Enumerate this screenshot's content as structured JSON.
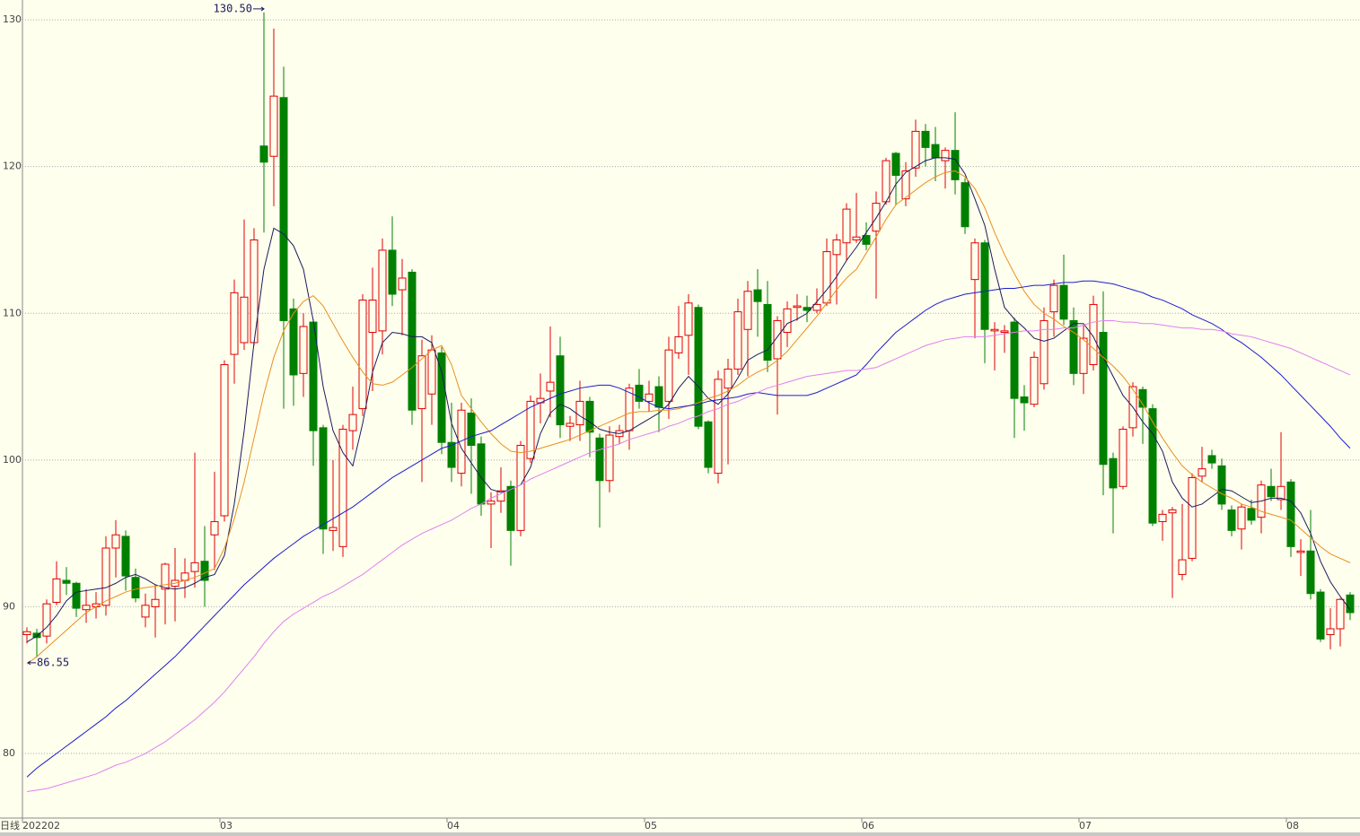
{
  "chart_data": {
    "type": "candlestick",
    "period_label": "日线",
    "categories": [
      "202202",
      null,
      null,
      null,
      null,
      null,
      null,
      null,
      null,
      null,
      null,
      null,
      null,
      null,
      null,
      null,
      null,
      null,
      null,
      null,
      "03",
      null,
      null,
      null,
      null,
      null,
      null,
      null,
      null,
      null,
      null,
      null,
      null,
      null,
      null,
      null,
      null,
      null,
      null,
      null,
      null,
      null,
      null,
      "04",
      null,
      null,
      null,
      null,
      null,
      null,
      null,
      null,
      null,
      null,
      null,
      null,
      null,
      null,
      null,
      null,
      null,
      null,
      null,
      "05",
      null,
      null,
      null,
      null,
      null,
      null,
      null,
      null,
      null,
      null,
      null,
      null,
      null,
      null,
      null,
      null,
      null,
      null,
      null,
      null,
      null,
      "06",
      null,
      null,
      null,
      null,
      null,
      null,
      null,
      null,
      null,
      null,
      null,
      null,
      null,
      null,
      null,
      null,
      null,
      null,
      null,
      null,
      null,
      "07",
      null,
      null,
      null,
      null,
      null,
      null,
      null,
      null,
      null,
      null,
      null,
      null,
      null,
      null,
      null,
      null,
      null,
      null,
      null,
      null,
      "08",
      null,
      null,
      null,
      null,
      null,
      null
    ],
    "open": [
      88.1,
      88.2,
      88.0,
      90.3,
      91.8,
      91.6,
      89.8,
      90.0,
      90.1,
      94.0,
      94.8,
      92.0,
      89.3,
      90.0,
      91.2,
      91.4,
      91.8,
      92.4,
      93.1,
      94.9,
      96.2,
      107.2,
      108.0,
      108.0,
      121.4,
      120.7,
      124.7,
      110.3,
      105.9,
      109.4,
      102.2,
      95.2,
      94.1,
      102.0,
      103.5,
      108.7,
      108.8,
      114.3,
      111.6,
      112.8,
      103.5,
      104.5,
      107.3,
      101.2,
      99.1,
      103.2,
      101.1,
      97.0,
      97.2,
      98.2,
      95.2,
      100.1,
      103.9,
      104.7,
      107.1,
      102.3,
      102.4,
      104.0,
      101.5,
      98.6,
      101.6,
      102.0,
      105.1,
      104.0,
      105.0,
      104.0,
      107.3,
      108.5,
      110.4,
      102.6,
      99.1,
      104.9,
      106.2,
      108.9,
      111.6,
      110.6,
      106.9,
      108.7,
      110.4,
      110.4,
      110.2,
      110.7,
      114.0,
      114.8,
      115.0,
      115.3,
      115.6,
      117.6,
      120.9,
      117.8,
      119.9,
      122.4,
      121.5,
      120.4,
      121.1,
      118.9,
      112.3,
      114.8,
      108.8,
      108.7,
      109.4,
      104.3,
      103.8,
      105.2,
      110.1,
      111.9,
      109.5,
      105.9,
      106.5,
      108.7,
      100.1,
      98.2,
      102.2,
      104.8,
      103.5,
      95.8,
      96.4,
      92.2,
      93.3,
      98.9,
      100.3,
      99.6,
      96.6,
      95.3,
      96.7,
      96.1,
      98.2,
      97.3,
      98.5,
      93.7,
      93.8,
      91.0,
      88.1,
      88.5,
      90.8
    ],
    "high": [
      88.6,
      88.5,
      90.5,
      93.1,
      92.7,
      91.7,
      91.2,
      91.0,
      94.8,
      95.9,
      95.2,
      92.6,
      90.9,
      91.5,
      93.0,
      94.0,
      93.3,
      100.5,
      95.5,
      99.2,
      106.8,
      112.3,
      116.4,
      115.8,
      130.5,
      129.4,
      126.8,
      111.0,
      110.0,
      109.6,
      102.4,
      100.0,
      102.4,
      105.0,
      111.3,
      113.1,
      115.1,
      116.6,
      113.7,
      113.0,
      108.2,
      108.5,
      107.7,
      103.9,
      103.9,
      104.2,
      101.6,
      97.8,
      99.5,
      98.6,
      101.3,
      104.4,
      105.9,
      109.1,
      108.4,
      103.0,
      105.4,
      104.3,
      101.8,
      102.3,
      102.4,
      105.2,
      106.2,
      105.4,
      105.7,
      108.4,
      110.5,
      111.3,
      110.6,
      102.7,
      106.1,
      106.9,
      111.0,
      112.2,
      113.0,
      112.2,
      109.8,
      110.8,
      111.3,
      111.2,
      111.7,
      115.1,
      115.4,
      117.5,
      118.2,
      116.2,
      118.3,
      120.6,
      121.0,
      120.3,
      123.2,
      122.9,
      122.7,
      121.3,
      123.7,
      119.2,
      115.1,
      115.0,
      109.4,
      109.2,
      109.7,
      105.1,
      107.4,
      110.4,
      112.3,
      114.0,
      110.4,
      109.2,
      111.2,
      111.5,
      100.5,
      102.3,
      105.3,
      105.0,
      103.8,
      96.6,
      96.8,
      97.0,
      99.1,
      100.9,
      100.7,
      100.1,
      96.9,
      97.0,
      97.3,
      98.6,
      99.4,
      101.9,
      98.7,
      94.6,
      96.6,
      91.2,
      89.9,
      90.6,
      91.0
    ],
    "low": [
      87.5,
      86.55,
      87.5,
      90.1,
      90.8,
      89.3,
      88.9,
      89.2,
      89.4,
      92.0,
      91.1,
      90.3,
      88.6,
      87.9,
      88.8,
      89.0,
      90.6,
      91.3,
      90.0,
      92.5,
      95.8,
      105.2,
      107.5,
      107.8,
      115.5,
      117.3,
      103.5,
      103.7,
      104.3,
      99.6,
      93.6,
      93.8,
      93.4,
      100.7,
      103.0,
      104.7,
      107.2,
      110.5,
      108.5,
      102.4,
      98.5,
      102.4,
      100.4,
      98.5,
      98.2,
      97.7,
      96.2,
      94.0,
      96.4,
      92.8,
      94.8,
      99.8,
      102.5,
      102.9,
      101.5,
      101.3,
      101.3,
      100.2,
      95.4,
      97.8,
      101.1,
      100.7,
      103.5,
      103.3,
      101.9,
      102.8,
      106.9,
      105.8,
      102.1,
      99.1,
      98.4,
      99.7,
      105.8,
      105.7,
      108.4,
      106.0,
      103.1,
      107.7,
      109.5,
      109.4,
      110.0,
      110.5,
      110.6,
      113.6,
      114.8,
      114.3,
      111.0,
      117.4,
      117.4,
      117.3,
      119.3,
      120.0,
      119.0,
      118.5,
      118.1,
      115.4,
      108.3,
      106.6,
      106.1,
      107.3,
      101.5,
      102.0,
      103.6,
      104.8,
      108.4,
      109.2,
      105.1,
      104.5,
      106.1,
      97.6,
      95.0,
      98.0,
      101.6,
      101.1,
      95.5,
      94.5,
      90.6,
      91.8,
      93.1,
      98.5,
      99.4,
      96.6,
      94.8,
      93.9,
      95.6,
      95.0,
      97.2,
      96.6,
      93.4,
      92.1,
      90.5,
      87.6,
      87.1,
      87.3,
      89.1
    ],
    "close": [
      88.3,
      87.9,
      90.2,
      91.9,
      91.6,
      89.9,
      90.1,
      90.2,
      94.0,
      94.9,
      92.1,
      90.6,
      90.1,
      90.5,
      92.9,
      91.8,
      92.3,
      93.0,
      91.8,
      95.8,
      106.5,
      111.4,
      111.1,
      115.0,
      120.3,
      124.8,
      109.5,
      105.8,
      109.1,
      102.0,
      95.3,
      95.4,
      102.1,
      103.1,
      110.9,
      110.9,
      114.3,
      111.3,
      112.4,
      103.4,
      107.1,
      107.5,
      101.2,
      99.5,
      103.4,
      101.0,
      97.0,
      97.2,
      97.9,
      95.2,
      101.0,
      104.0,
      104.2,
      105.3,
      102.4,
      102.5,
      104.0,
      101.9,
      98.6,
      101.7,
      102.0,
      104.9,
      104.0,
      104.5,
      103.6,
      107.5,
      108.4,
      110.7,
      102.3,
      99.5,
      105.5,
      106.2,
      110.1,
      111.5,
      110.8,
      106.8,
      109.5,
      110.3,
      110.5,
      110.2,
      110.6,
      114.2,
      115.0,
      117.1,
      115.2,
      114.7,
      117.5,
      120.4,
      119.4,
      119.7,
      122.4,
      121.3,
      120.6,
      121.1,
      119.1,
      115.9,
      114.8,
      108.9,
      108.9,
      108.8,
      104.2,
      103.9,
      107.0,
      109.5,
      111.9,
      109.6,
      105.9,
      108.3,
      110.6,
      99.7,
      98.1,
      102.1,
      105.0,
      103.6,
      95.7,
      96.3,
      96.6,
      93.2,
      98.8,
      99.4,
      99.8,
      97.0,
      95.2,
      96.8,
      95.9,
      98.3,
      97.5,
      98.2,
      94.1,
      93.8,
      90.9,
      87.8,
      88.5,
      90.5,
      89.6
    ],
    "up_color": "#e00000",
    "down_color": "#008000",
    "lines": [
      {
        "color": "#1a1a5e",
        "values": [
          87.6,
          88.0,
          88.6,
          89.4,
          90.4,
          91.0,
          91.1,
          91.2,
          91.3,
          91.6,
          92.0,
          92.2,
          91.9,
          91.5,
          91.3,
          91.2,
          91.3,
          91.6,
          92.0,
          92.2,
          93.5,
          97.0,
          102.0,
          108.0,
          113.0,
          115.8,
          115.4,
          114.6,
          113.0,
          109.5,
          105.0,
          102.0,
          100.5,
          99.6,
          102.5,
          106.0,
          108.0,
          108.7,
          108.6,
          108.4,
          108.4,
          108.0,
          106.0,
          102.5,
          100.8,
          99.8,
          98.8,
          98.0,
          97.8,
          98.0,
          98.3,
          99.5,
          101.8,
          103.2,
          103.8,
          103.5,
          103.0,
          102.6,
          102.1,
          101.9,
          101.8,
          102.0,
          102.4,
          102.8,
          103.2,
          103.8,
          104.9,
          105.7,
          105.0,
          104.2,
          103.8,
          104.5,
          105.6,
          106.8,
          107.2,
          107.5,
          108.4,
          109.3,
          109.6,
          110.0,
          110.8,
          111.6,
          112.5,
          113.6,
          114.5,
          115.5,
          116.5,
          117.6,
          118.8,
          119.6,
          120.0,
          120.4,
          120.6,
          120.6,
          120.5,
          119.5,
          117.8,
          116.0,
          113.0,
          110.4,
          109.6,
          109.0,
          108.3,
          108.1,
          108.3,
          108.8,
          109.3,
          109.3,
          108.4,
          107.0,
          105.7,
          104.4,
          103.6,
          102.6,
          101.8,
          100.6,
          98.5,
          97.4,
          96.8,
          97.0,
          97.5,
          98.0,
          97.9,
          97.5,
          97.1,
          97.2,
          97.4,
          97.4,
          97.2,
          96.4,
          95.0,
          93.1,
          91.7,
          90.7,
          89.8
        ]
      },
      {
        "color": "#e8901c",
        "values": [
          86.1,
          86.6,
          87.2,
          87.8,
          88.4,
          89.0,
          89.6,
          90.0,
          90.4,
          90.7,
          91.0,
          91.2,
          91.3,
          91.4,
          91.5,
          91.6,
          91.8,
          92.0,
          92.3,
          92.6,
          94.0,
          96.0,
          98.5,
          101.5,
          104.5,
          107.0,
          108.8,
          110.0,
          110.8,
          111.2,
          110.5,
          109.3,
          108.1,
          107.0,
          106.0,
          105.2,
          105.1,
          105.3,
          105.8,
          106.3,
          106.9,
          107.5,
          107.8,
          106.5,
          104.4,
          103.5,
          102.6,
          101.8,
          101.1,
          100.6,
          100.5,
          100.6,
          100.8,
          101.0,
          101.2,
          101.4,
          101.7,
          102.0,
          102.3,
          102.6,
          102.9,
          103.2,
          103.3,
          103.3,
          103.4,
          103.4,
          103.5,
          103.7,
          103.9,
          104.2,
          104.4,
          104.7,
          105.1,
          105.6,
          106.0,
          106.3,
          106.8,
          107.4,
          108.2,
          109.0,
          109.8,
          110.7,
          111.6,
          112.4,
          113.0,
          114.1,
          115.2,
          116.4,
          117.4,
          117.9,
          118.4,
          118.9,
          119.3,
          119.6,
          119.7,
          119.3,
          118.5,
          117.2,
          115.5,
          114.0,
          112.7,
          111.5,
          110.6,
          110.0,
          109.6,
          109.1,
          108.7,
          108.2,
          107.6,
          107.0,
          106.4,
          105.7,
          104.8,
          103.8,
          102.6,
          101.5,
          100.5,
          99.6,
          99.0,
          98.5,
          98.1,
          97.7,
          97.4,
          97.0,
          96.8,
          96.5,
          96.3,
          96.1,
          95.9,
          95.3,
          94.7,
          94.1,
          93.6,
          93.3,
          93.0
        ]
      },
      {
        "color": "#1c1ccc",
        "values": [
          78.4,
          79.0,
          79.5,
          80.0,
          80.5,
          81.0,
          81.5,
          82.0,
          82.5,
          83.1,
          83.6,
          84.2,
          84.8,
          85.4,
          86.0,
          86.6,
          87.3,
          88.0,
          88.7,
          89.4,
          90.1,
          90.8,
          91.5,
          92.1,
          92.7,
          93.3,
          93.8,
          94.3,
          94.8,
          95.2,
          95.6,
          96.0,
          96.4,
          96.8,
          97.3,
          97.8,
          98.3,
          98.8,
          99.2,
          99.6,
          100.0,
          100.4,
          100.8,
          101.0,
          101.3,
          101.6,
          101.8,
          102.0,
          102.4,
          102.8,
          103.2,
          103.6,
          103.9,
          104.2,
          104.5,
          104.7,
          104.9,
          105.0,
          105.1,
          105.1,
          104.9,
          104.6,
          104.3,
          103.9,
          103.6,
          103.5,
          103.6,
          103.7,
          103.8,
          104.0,
          104.1,
          104.2,
          104.3,
          104.5,
          104.6,
          104.5,
          104.4,
          104.4,
          104.4,
          104.4,
          104.6,
          104.9,
          105.2,
          105.5,
          105.8,
          106.5,
          107.3,
          108.0,
          108.7,
          109.2,
          109.7,
          110.2,
          110.6,
          110.9,
          111.1,
          111.3,
          111.4,
          111.5,
          111.6,
          111.7,
          111.7,
          111.8,
          111.9,
          111.9,
          112.0,
          112.1,
          112.1,
          112.2,
          112.2,
          112.1,
          112.0,
          111.8,
          111.6,
          111.4,
          111.1,
          110.9,
          110.6,
          110.3,
          109.9,
          109.6,
          109.3,
          108.9,
          108.4,
          108.0,
          107.5,
          107.0,
          106.4,
          105.8,
          105.1,
          104.4,
          103.7,
          103.0,
          102.3,
          101.5,
          100.8
        ]
      },
      {
        "color": "#e080f0",
        "values": [
          77.4,
          77.5,
          77.6,
          77.8,
          78.0,
          78.2,
          78.4,
          78.6,
          78.9,
          79.2,
          79.4,
          79.7,
          80.0,
          80.4,
          80.8,
          81.3,
          81.8,
          82.3,
          82.9,
          83.5,
          84.2,
          85.0,
          85.8,
          86.6,
          87.5,
          88.3,
          89.0,
          89.5,
          89.9,
          90.3,
          90.7,
          91.0,
          91.4,
          91.8,
          92.2,
          92.7,
          93.2,
          93.7,
          94.2,
          94.6,
          95.0,
          95.3,
          95.6,
          95.9,
          96.3,
          96.7,
          97.0,
          97.4,
          97.7,
          98.0,
          98.3,
          98.7,
          99.0,
          99.3,
          99.6,
          99.9,
          100.2,
          100.5,
          100.7,
          100.9,
          101.1,
          101.4,
          101.6,
          101.8,
          102.0,
          102.3,
          102.5,
          102.8,
          103.0,
          103.3,
          103.5,
          103.8,
          104.0,
          104.3,
          104.6,
          104.9,
          105.1,
          105.3,
          105.5,
          105.7,
          105.8,
          105.9,
          106.0,
          106.1,
          106.1,
          106.2,
          106.3,
          106.6,
          106.9,
          107.2,
          107.5,
          107.8,
          108.0,
          108.2,
          108.3,
          108.4,
          108.4,
          108.4,
          108.5,
          108.6,
          108.7,
          108.8,
          108.8,
          108.9,
          108.9,
          109.0,
          109.0,
          109.2,
          109.4,
          109.5,
          109.5,
          109.4,
          109.4,
          109.3,
          109.3,
          109.2,
          109.1,
          109.0,
          109.0,
          108.9,
          108.9,
          108.8,
          108.6,
          108.5,
          108.4,
          108.2,
          108.0,
          107.8,
          107.6,
          107.3,
          107.0,
          106.7,
          106.4,
          106.1,
          105.8
        ]
      }
    ],
    "annotations": [
      {
        "value": 130.5,
        "label": "130.50"
      },
      {
        "value": 86.55,
        "label": "86.55"
      }
    ],
    "ylim": [
      75.6,
      131.35
    ],
    "yticks": [
      80,
      90,
      100,
      110,
      120,
      130
    ],
    "grid": true,
    "background": "#ffffee"
  }
}
